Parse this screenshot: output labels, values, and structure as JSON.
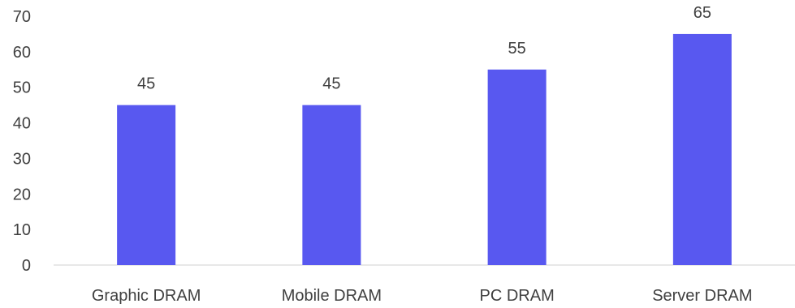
{
  "chart_data": {
    "type": "bar",
    "categories": [
      "Graphic DRAM",
      "Mobile DRAM",
      "PC DRAM",
      "Server DRAM"
    ],
    "values": [
      45,
      45,
      55,
      65
    ],
    "data_labels": [
      "45",
      "45",
      "55",
      "65"
    ],
    "y_ticks": [
      0,
      10,
      20,
      30,
      40,
      50,
      60,
      70
    ],
    "ylim": [
      0,
      70
    ],
    "grid": false,
    "bar_color": "#5858f0",
    "axis_color": "#d0d0d0"
  }
}
